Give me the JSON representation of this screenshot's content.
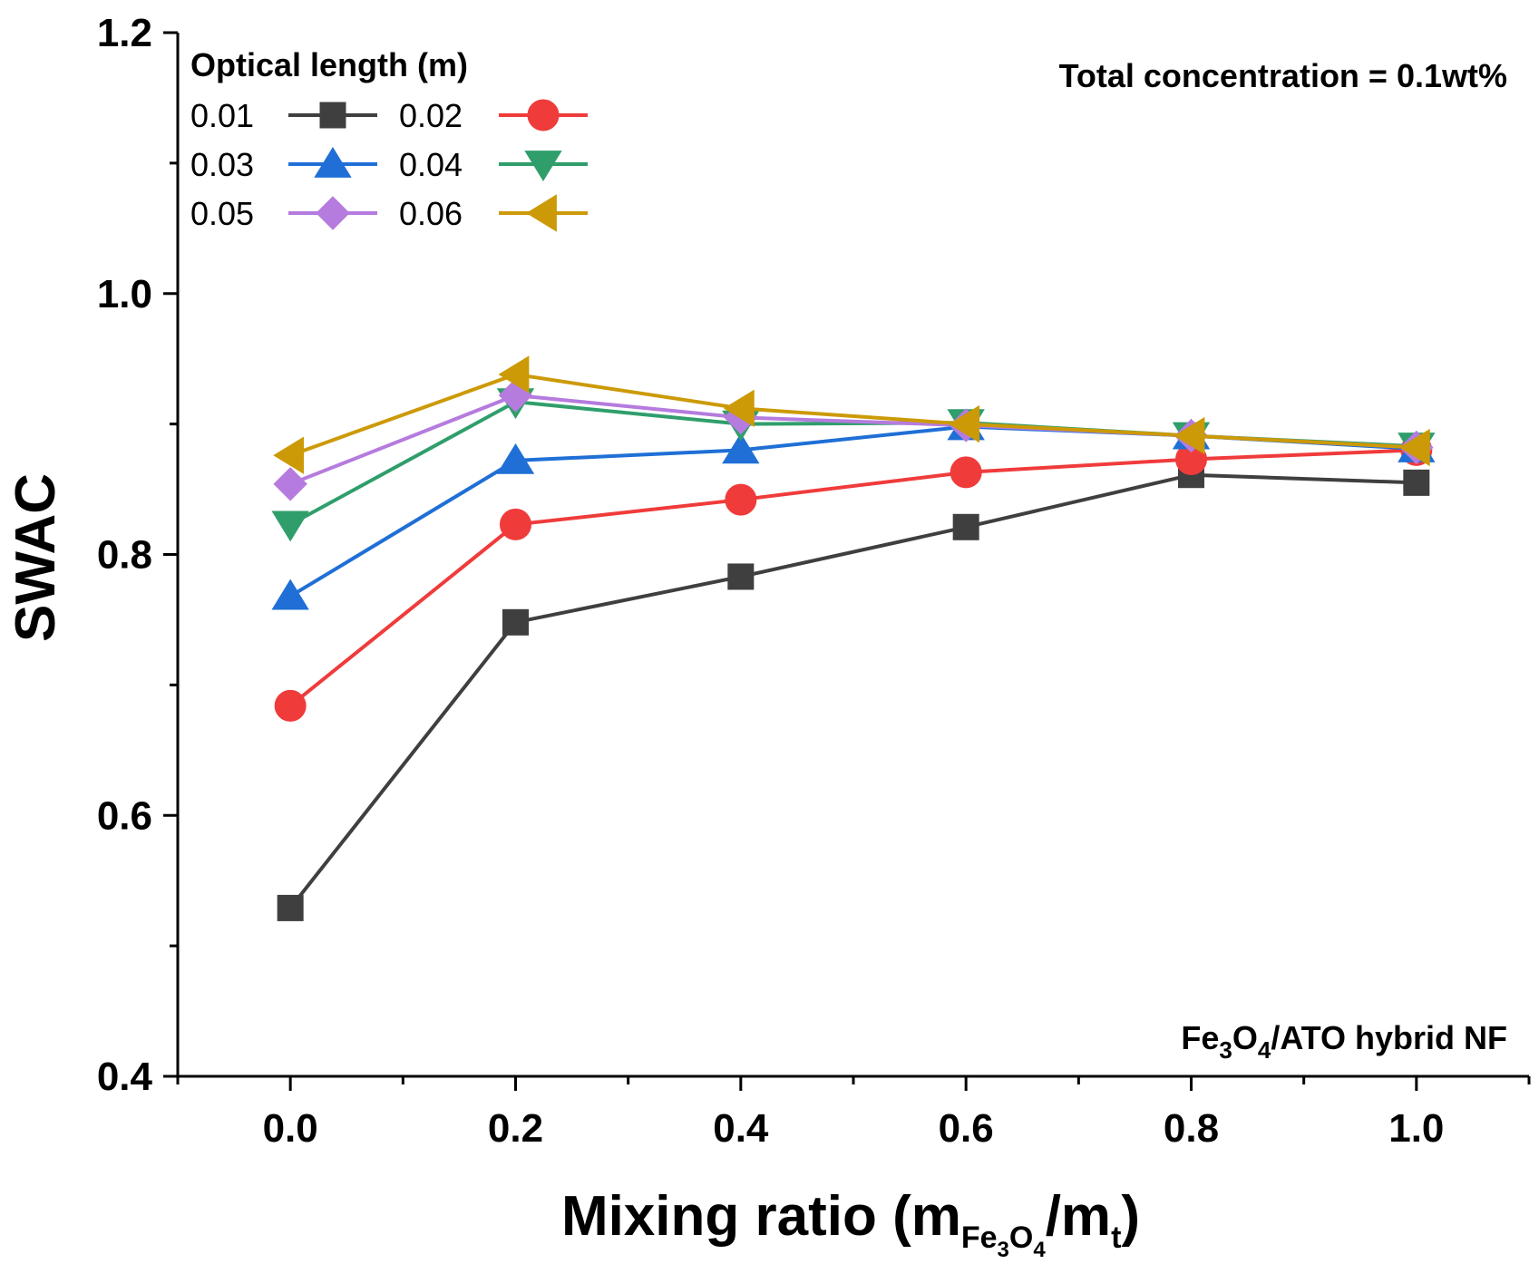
{
  "chart_data": {
    "type": "line",
    "title": "",
    "xlabel": "Mixing ratio (mFe3O4/mt)",
    "xlabel_parts": {
      "prefix": "Mixing ratio (m",
      "sub1_a": "Fe",
      "sub1_b": "3",
      "sub1_c": "O",
      "sub1_d": "4",
      "mid": "/m",
      "sub2": "t",
      "suffix": ")"
    },
    "ylabel": "SWAC",
    "xlim": [
      -0.1,
      1.1
    ],
    "ylim": [
      0.4,
      1.2
    ],
    "x_ticks": [
      0.0,
      0.2,
      0.4,
      0.6,
      0.8,
      1.0
    ],
    "x_tick_labels": [
      "0.0",
      "0.2",
      "0.4",
      "0.6",
      "0.8",
      "1.0"
    ],
    "y_ticks": [
      0.4,
      0.6,
      0.8,
      1.0,
      1.2
    ],
    "y_tick_labels": [
      "0.4",
      "0.6",
      "0.8",
      "1.0",
      "1.2"
    ],
    "grid": false,
    "legend": {
      "title": "Optical length (m)",
      "placement": "top-left"
    },
    "annotations": {
      "top_right": "Total concentration = 0.1wt%",
      "bottom_right_parts": {
        "a": "Fe",
        "b": "3",
        "c": "O",
        "d": "4",
        "e": "/ATO hybrid NF"
      }
    },
    "x": [
      0.0,
      0.2,
      0.4,
      0.6,
      0.8,
      1.0
    ],
    "series": [
      {
        "name": "0.01",
        "marker": "square",
        "color": "#3f3f3f",
        "values": [
          0.529,
          0.748,
          0.783,
          0.821,
          0.861,
          0.855
        ]
      },
      {
        "name": "0.02",
        "marker": "circle",
        "color": "#f03b3b",
        "values": [
          0.684,
          0.823,
          0.842,
          0.863,
          0.873,
          0.88
        ]
      },
      {
        "name": "0.03",
        "marker": "triangle-up",
        "color": "#1f6fd6",
        "values": [
          0.768,
          0.872,
          0.88,
          0.898,
          0.891,
          0.881
        ]
      },
      {
        "name": "0.04",
        "marker": "triangle-down",
        "color": "#2f9e6b",
        "values": [
          0.823,
          0.917,
          0.9,
          0.901,
          0.891,
          0.883
        ]
      },
      {
        "name": "0.05",
        "marker": "diamond",
        "color": "#b57bde",
        "values": [
          0.854,
          0.922,
          0.905,
          0.899,
          0.891,
          0.882
        ]
      },
      {
        "name": "0.06",
        "marker": "triangle-left",
        "color": "#cc9a06",
        "values": [
          0.876,
          0.938,
          0.912,
          0.9,
          0.891,
          0.882
        ]
      }
    ]
  }
}
